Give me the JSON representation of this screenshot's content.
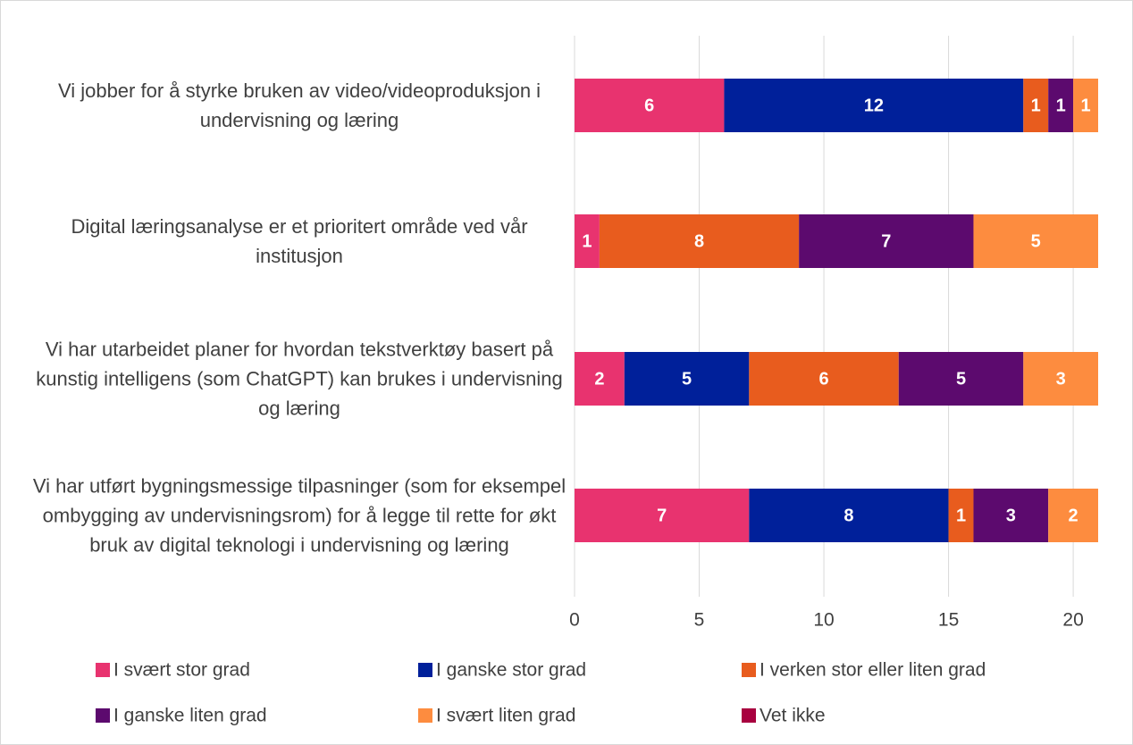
{
  "chart_data": {
    "type": "stacked-bar-horizontal",
    "categories": [
      "Vi jobber for å styrke bruken av video/videoproduksjon i undervisning og læring",
      "Digital læringsanalyse er et prioritert område ved vår institusjon",
      "Vi har utarbeidet planer for hvordan tekstverktøy basert på kunstig intelligens (som ChatGPT) kan brukes i undervisning og læring",
      "Vi har utført bygningsmessige tilpasninger (som for eksempel ombygging av undervisningsrom) for å legge til rette for økt bruk av digital teknologi i undervisning og læring"
    ],
    "series": [
      {
        "name": "I svært stor grad",
        "color": "#e8336f",
        "values": [
          6,
          1,
          2,
          7
        ]
      },
      {
        "name": "I ganske stor grad",
        "color": "#00209a",
        "values": [
          12,
          0,
          5,
          8
        ]
      },
      {
        "name": "I verken stor eller liten grad",
        "color": "#e85c1e",
        "values": [
          1,
          8,
          6,
          1
        ]
      },
      {
        "name": "I ganske liten grad",
        "color": "#5c0a6e",
        "values": [
          1,
          7,
          5,
          3
        ]
      },
      {
        "name": "I svært liten grad",
        "color": "#fd8c3f",
        "values": [
          1,
          5,
          3,
          2
        ]
      },
      {
        "name": "Vet ikke",
        "color": "#a8003f",
        "values": [
          0,
          0,
          0,
          0
        ]
      }
    ],
    "xlim": [
      0,
      21
    ],
    "xticks": [
      0,
      5,
      10,
      15,
      20
    ],
    "grid": true,
    "legend": "bottom"
  }
}
